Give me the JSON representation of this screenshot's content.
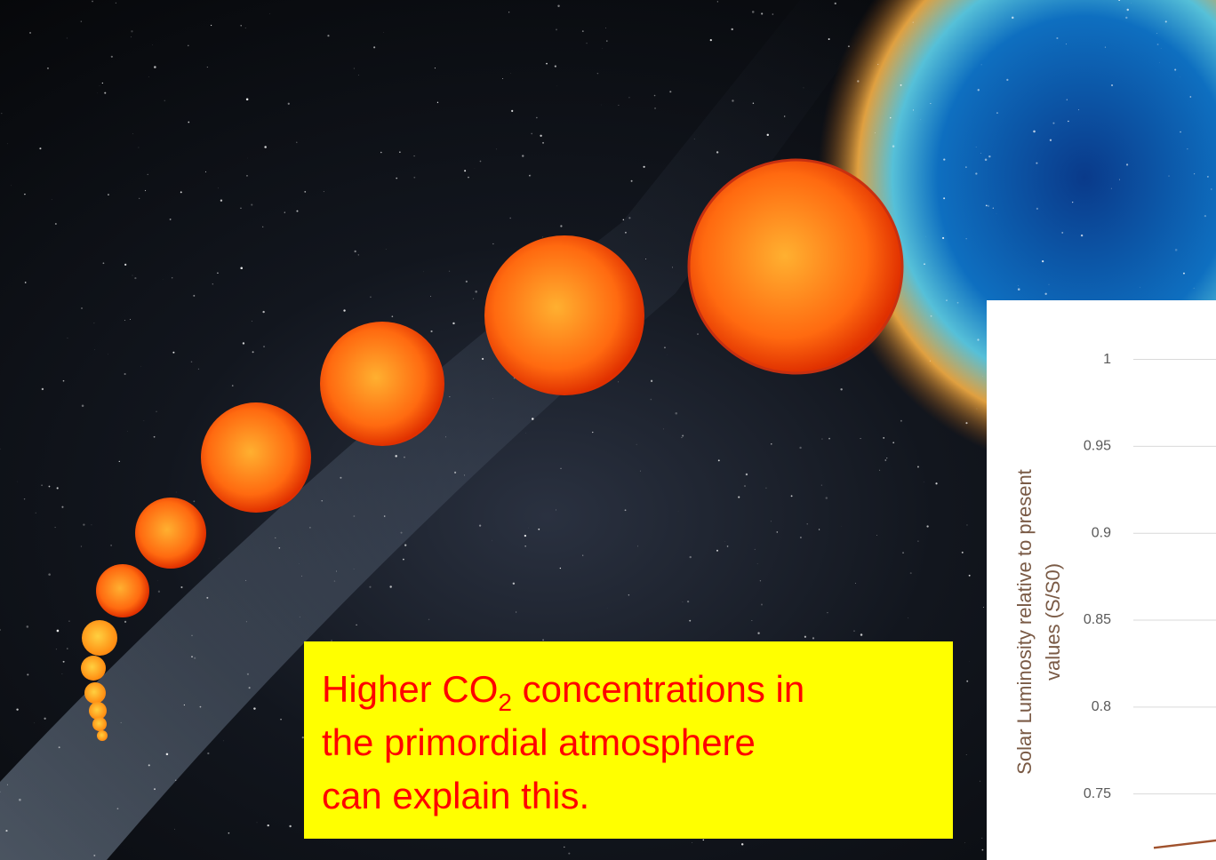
{
  "text_box": {
    "line1": "Higher CO",
    "subscript": "2",
    "line1_end": " concentrations in",
    "line2": "the primordial atmosphere",
    "line3": "can explain this."
  },
  "chart_data": {
    "type": "line",
    "ylabel": [
      "Solar Luminosity relative to present",
      "values (S/S0)"
    ],
    "ylim": [
      0.712,
      1.033
    ],
    "yticks": [
      1,
      0.95,
      0.9,
      0.85,
      0.8,
      0.75
    ],
    "grid": true,
    "series": [
      {
        "color": "#a0522d",
        "values": [
          0.719,
          0.724
        ]
      }
    ]
  }
}
